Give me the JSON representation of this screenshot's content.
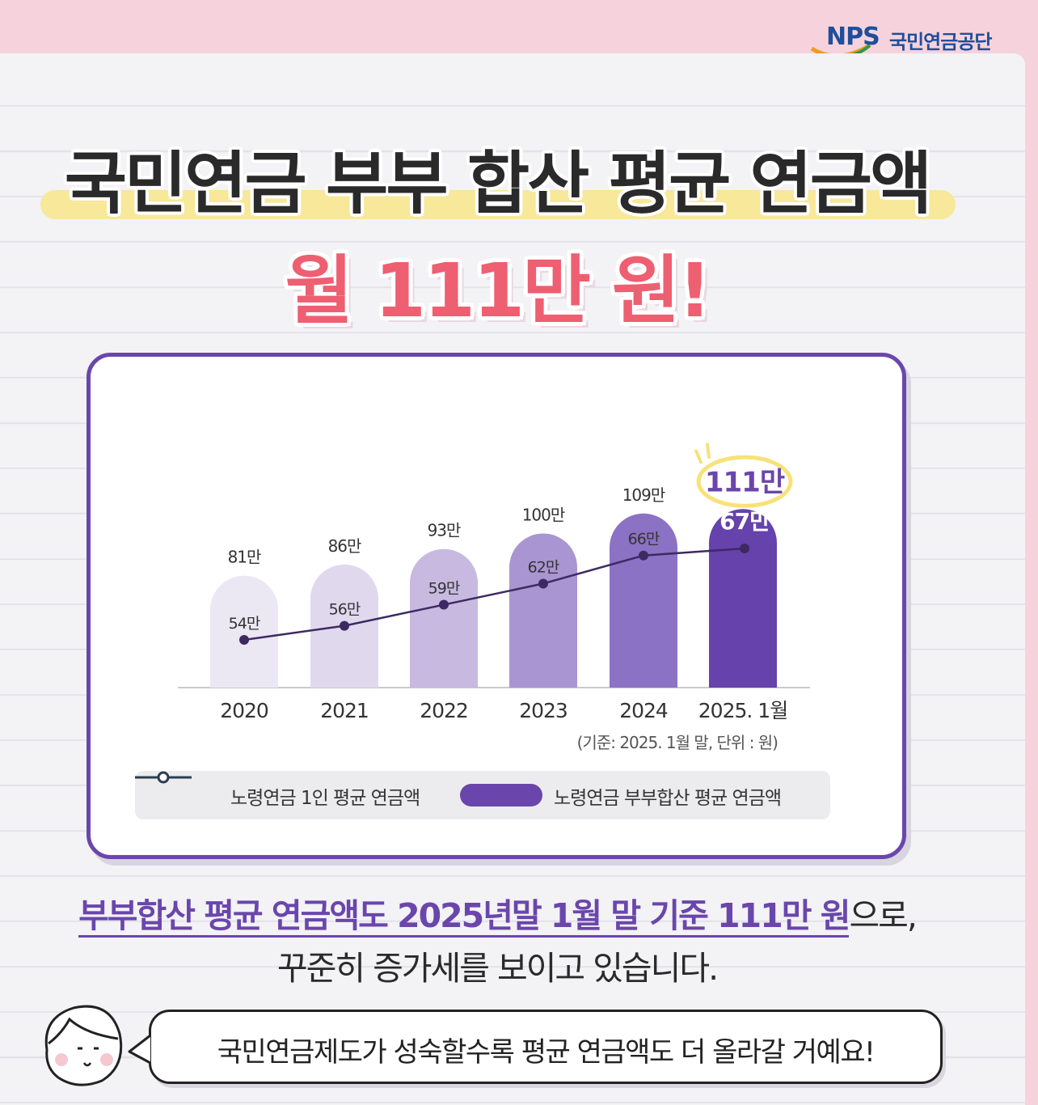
{
  "logo": {
    "brand": "NPS",
    "org": "국민연금공단"
  },
  "title": {
    "line1": "국민연금 부부 합산 평균 연금액",
    "line2": "월 111만 원!"
  },
  "chart_data": {
    "type": "bar",
    "categories": [
      "2020",
      "2021",
      "2022",
      "2023",
      "2024",
      "2025. 1월"
    ],
    "series": [
      {
        "name": "노령연금 부부합산 평균 연금액",
        "type": "bar",
        "values": [
          81,
          86,
          93,
          100,
          109,
          111
        ],
        "labels": [
          "81만",
          "86만",
          "93만",
          "100만",
          "109만",
          "111만"
        ],
        "colors": [
          "#ebe7f3",
          "#e0d9ee",
          "#c7b9e0",
          "#a995d2",
          "#8b72c4",
          "#6542ac"
        ]
      },
      {
        "name": "노령연금 1인 평균 연금액",
        "type": "line",
        "values": [
          54,
          56,
          59,
          62,
          66,
          67
        ],
        "labels": [
          "54만",
          "56만",
          "59만",
          "62만",
          "66만",
          "67만"
        ],
        "color": "#3d2a62"
      }
    ],
    "note": "(기준: 2025. 1월 말, 단위 : 원)",
    "legend_position": "bottom",
    "highlight_color": "#f7e27a",
    "accent_color": "#6a46ac"
  },
  "summary": {
    "highlight": "부부합산 평균 연금액도 2025년말 1월 말 기준 111만 원",
    "rest": "으로,",
    "line2": "꾸준히 증가세를 보이고 있습니다."
  },
  "speech": {
    "text": "국민연금제도가 성숙할수록 평균 연금액도 더 올라갈 거예요!"
  }
}
